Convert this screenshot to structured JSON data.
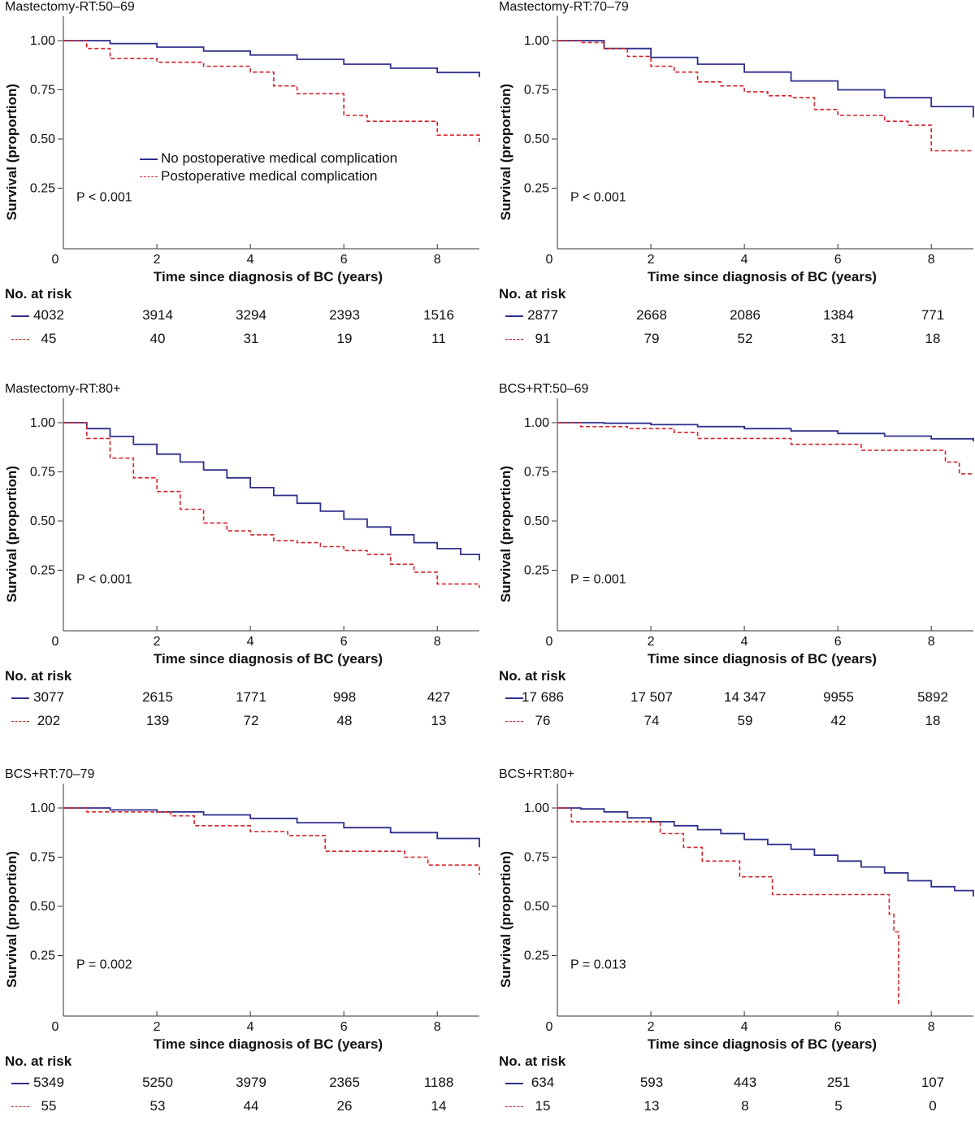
{
  "colors": {
    "no_complication": "#2e2f8c",
    "complication": "#d2232a",
    "axis": "#333333"
  },
  "legend": {
    "no_complication": "No postoperative medical complication",
    "complication": "Postoperative medical complication"
  },
  "risk_title": "No. at risk",
  "chart_data": [
    {
      "type": "line",
      "step": true,
      "title": "Mastectomy-RT:50–69",
      "xlabel": "Time since diagnosis of BC (years)",
      "ylabel": "Survival (proportion)",
      "xlim": [
        0,
        8.9
      ],
      "ylim": [
        0,
        1
      ],
      "x_ticks": [
        "0",
        "2",
        "4",
        "6",
        "8"
      ],
      "y_ticks": [
        "0.25",
        "0.50",
        "0.75",
        "1.00"
      ],
      "p_value": "P < 0.001",
      "show_legend": true,
      "series": [
        {
          "name": "No postoperative medical complication",
          "style": "solid",
          "x": [
            0,
            1,
            2,
            3,
            4,
            5,
            6,
            7,
            8,
            8.9
          ],
          "y": [
            1.0,
            0.985,
            0.967,
            0.947,
            0.927,
            0.905,
            0.88,
            0.86,
            0.838,
            0.815
          ]
        },
        {
          "name": "Postoperative medical complication",
          "style": "dashed",
          "x": [
            0,
            0.5,
            1.0,
            2.0,
            3.0,
            4.0,
            4.5,
            5.0,
            6.0,
            6.5,
            8.0,
            8.9
          ],
          "y": [
            1.0,
            0.96,
            0.91,
            0.89,
            0.87,
            0.84,
            0.77,
            0.73,
            0.62,
            0.59,
            0.52,
            0.47
          ]
        }
      ],
      "at_risk": {
        "no_complication": [
          "4032",
          "3914",
          "3294",
          "2393",
          "1516"
        ],
        "complication": [
          "45",
          "40",
          "31",
          "19",
          "11"
        ]
      }
    },
    {
      "type": "line",
      "step": true,
      "title": "Mastectomy-RT:70–79",
      "xlabel": "Time since diagnosis of BC (years)",
      "ylabel": "Survival (proportion)",
      "xlim": [
        0,
        8.9
      ],
      "ylim": [
        0,
        1
      ],
      "x_ticks": [
        "0",
        "2",
        "4",
        "6",
        "8"
      ],
      "y_ticks": [
        "0.25",
        "0.50",
        "0.75",
        "1.00"
      ],
      "p_value": "P < 0.001",
      "show_legend": false,
      "series": [
        {
          "style": "solid",
          "x": [
            0,
            1,
            2,
            3,
            4,
            5,
            6,
            7,
            8,
            8.9
          ],
          "y": [
            1.0,
            0.96,
            0.915,
            0.88,
            0.84,
            0.795,
            0.75,
            0.71,
            0.665,
            0.61
          ]
        },
        {
          "style": "dashed",
          "x": [
            0,
            0.5,
            1.0,
            1.5,
            2.0,
            2.5,
            3.0,
            3.5,
            4.0,
            4.5,
            5.0,
            5.5,
            6.0,
            6.5,
            7.0,
            7.5,
            8.0,
            8.9
          ],
          "y": [
            1.0,
            0.99,
            0.96,
            0.92,
            0.87,
            0.84,
            0.79,
            0.77,
            0.74,
            0.72,
            0.71,
            0.65,
            0.62,
            0.62,
            0.59,
            0.57,
            0.44,
            0.44
          ]
        }
      ],
      "at_risk": {
        "no_complication": [
          "2877",
          "2668",
          "2086",
          "1384",
          "771"
        ],
        "complication": [
          "91",
          "79",
          "52",
          "31",
          "18"
        ]
      }
    },
    {
      "type": "line",
      "step": true,
      "title": "Mastectomy-RT:80+",
      "xlabel": "Time since diagnosis of BC (years)",
      "ylabel": "Survival (proportion)",
      "xlim": [
        0,
        8.9
      ],
      "ylim": [
        0,
        1
      ],
      "x_ticks": [
        "0",
        "2",
        "4",
        "6",
        "8"
      ],
      "y_ticks": [
        "0.25",
        "0.50",
        "0.75",
        "1.00"
      ],
      "p_value": "P < 0.001",
      "show_legend": false,
      "series": [
        {
          "style": "solid",
          "x": [
            0,
            0.5,
            1.0,
            1.5,
            2.0,
            2.5,
            3.0,
            3.5,
            4.0,
            4.5,
            5.0,
            5.5,
            6.0,
            6.5,
            7.0,
            7.5,
            8.0,
            8.5,
            8.9
          ],
          "y": [
            1.0,
            0.97,
            0.93,
            0.89,
            0.84,
            0.8,
            0.76,
            0.72,
            0.67,
            0.63,
            0.59,
            0.55,
            0.51,
            0.47,
            0.43,
            0.39,
            0.36,
            0.33,
            0.3
          ]
        },
        {
          "style": "dashed",
          "x": [
            0,
            0.5,
            1.0,
            1.5,
            2.0,
            2.5,
            3.0,
            3.5,
            4.0,
            4.5,
            5.0,
            5.5,
            6.0,
            6.5,
            7.0,
            7.5,
            8.0,
            8.9
          ],
          "y": [
            1.0,
            0.92,
            0.82,
            0.72,
            0.65,
            0.56,
            0.49,
            0.45,
            0.43,
            0.4,
            0.39,
            0.37,
            0.35,
            0.33,
            0.28,
            0.24,
            0.18,
            0.16
          ]
        }
      ],
      "at_risk": {
        "no_complication": [
          "3077",
          "2615",
          "1771",
          "998",
          "427"
        ],
        "complication": [
          "202",
          "139",
          "72",
          "48",
          "13"
        ]
      }
    },
    {
      "type": "line",
      "step": true,
      "title": "BCS+RT:50–69",
      "xlabel": "Time since diagnosis of BC (years)",
      "ylabel": "Survival (proportion)",
      "xlim": [
        0,
        8.9
      ],
      "ylim": [
        0,
        1
      ],
      "x_ticks": [
        "0",
        "2",
        "4",
        "6",
        "8"
      ],
      "y_ticks": [
        "0.25",
        "0.50",
        "0.75",
        "1.00"
      ],
      "p_value": "P = 0.001",
      "show_legend": false,
      "series": [
        {
          "style": "solid",
          "x": [
            0,
            1,
            2,
            3,
            4,
            5,
            6,
            7,
            8,
            8.9
          ],
          "y": [
            1.0,
            0.997,
            0.99,
            0.98,
            0.97,
            0.958,
            0.945,
            0.932,
            0.918,
            0.905
          ]
        },
        {
          "style": "dashed",
          "x": [
            0,
            0.5,
            1.5,
            2.5,
            3.0,
            5.0,
            6.5,
            8.0,
            8.3,
            8.6,
            8.9
          ],
          "y": [
            1.0,
            0.98,
            0.97,
            0.95,
            0.92,
            0.89,
            0.86,
            0.86,
            0.8,
            0.74,
            0.74
          ]
        }
      ],
      "at_risk": {
        "no_complication": [
          "17 686",
          "17 507",
          "14 347",
          "9955",
          "5892"
        ],
        "complication": [
          "76",
          "74",
          "59",
          "42",
          "18"
        ]
      }
    },
    {
      "type": "line",
      "step": true,
      "title": "BCS+RT:70–79",
      "xlabel": "Time since diagnosis of BC (years)",
      "ylabel": "Survival (proportion)",
      "xlim": [
        0,
        8.9
      ],
      "ylim": [
        0,
        1
      ],
      "x_ticks": [
        "0",
        "2",
        "4",
        "6",
        "8"
      ],
      "y_ticks": [
        "0.25",
        "0.50",
        "0.75",
        "1.00"
      ],
      "p_value": "P = 0.002",
      "show_legend": false,
      "series": [
        {
          "style": "solid",
          "x": [
            0,
            1,
            2,
            3,
            4,
            5,
            6,
            7,
            8,
            8.9
          ],
          "y": [
            1.0,
            0.99,
            0.98,
            0.965,
            0.947,
            0.925,
            0.9,
            0.875,
            0.845,
            0.8
          ]
        },
        {
          "style": "dashed",
          "x": [
            0,
            0.5,
            2.3,
            2.8,
            4.0,
            4.8,
            5.6,
            7.3,
            7.8,
            8.9
          ],
          "y": [
            1.0,
            0.98,
            0.96,
            0.91,
            0.88,
            0.86,
            0.78,
            0.75,
            0.71,
            0.66
          ]
        }
      ],
      "at_risk": {
        "no_complication": [
          "5349",
          "5250",
          "3979",
          "2365",
          "1188"
        ],
        "complication": [
          "55",
          "53",
          "44",
          "26",
          "14"
        ]
      }
    },
    {
      "type": "line",
      "step": true,
      "title": "BCS+RT:80+",
      "xlabel": "Time since diagnosis of BC (years)",
      "ylabel": "Survival (proportion)",
      "xlim": [
        0,
        8.9
      ],
      "ylim": [
        0,
        1
      ],
      "x_ticks": [
        "0",
        "2",
        "4",
        "6",
        "8"
      ],
      "y_ticks": [
        "0.25",
        "0.50",
        "0.75",
        "1.00"
      ],
      "p_value": "P = 0.013",
      "show_legend": false,
      "series": [
        {
          "style": "solid",
          "x": [
            0,
            0.5,
            1.0,
            1.5,
            2.0,
            2.5,
            3.0,
            3.5,
            4.0,
            4.5,
            5.0,
            5.5,
            6.0,
            6.5,
            7.0,
            7.5,
            8.0,
            8.5,
            8.9
          ],
          "y": [
            1.0,
            0.995,
            0.98,
            0.95,
            0.93,
            0.91,
            0.89,
            0.87,
            0.84,
            0.815,
            0.79,
            0.76,
            0.73,
            0.7,
            0.67,
            0.63,
            0.6,
            0.58,
            0.55
          ]
        },
        {
          "style": "dashed",
          "x": [
            0,
            0.3,
            1.2,
            2.2,
            2.7,
            3.1,
            3.9,
            4.6,
            7.0,
            7.1,
            7.2,
            7.3,
            7.3
          ],
          "y": [
            1.0,
            0.93,
            0.93,
            0.87,
            0.8,
            0.73,
            0.65,
            0.56,
            0.56,
            0.46,
            0.37,
            0.37,
            0.0
          ]
        }
      ],
      "at_risk": {
        "no_complication": [
          "634",
          "593",
          "443",
          "251",
          "107"
        ],
        "complication": [
          "15",
          "13",
          "8",
          "5",
          "0"
        ]
      }
    }
  ]
}
